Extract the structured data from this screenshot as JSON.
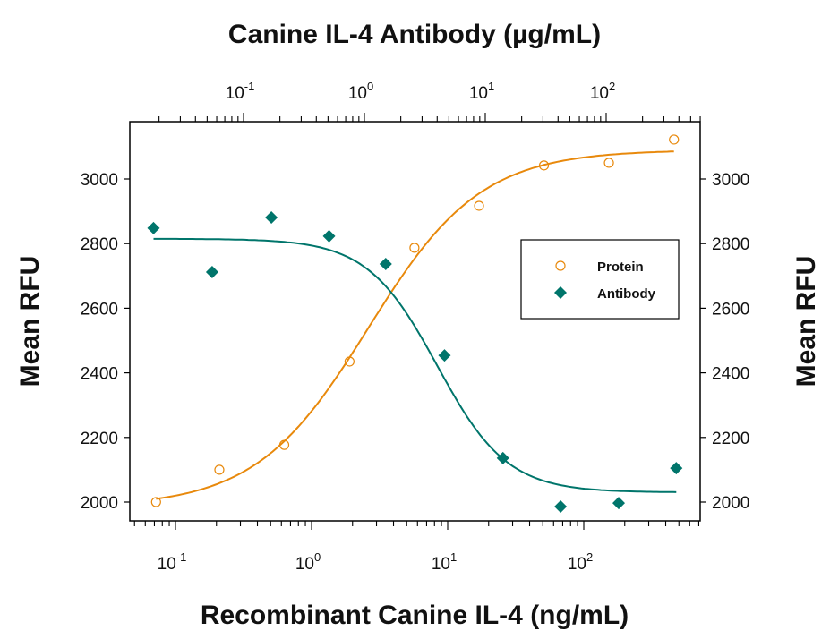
{
  "chart_data": {
    "type": "scatter",
    "title": "",
    "top_xlabel": "Canine IL-4 Antibody (µg/mL)",
    "xlabel": "Recombinant Canine IL-4 (ng/mL)",
    "ylabel": "Mean RFU",
    "ylabel_right": "Mean RFU",
    "xscale": "log",
    "bottom_x_ticks": [
      "10^-1",
      "10^0",
      "10^1",
      "10^2"
    ],
    "top_x_ticks": [
      "10^-1",
      "10^0",
      "10^1",
      "10^2"
    ],
    "y_ticks": [
      2000,
      2200,
      2400,
      2600,
      2800,
      3000
    ],
    "ylim": [
      1940,
      3175
    ],
    "grid": false,
    "legend_position": "upper right (inside)",
    "series": [
      {
        "name": "Protein",
        "axis": "bottom",
        "marker": "open-circle",
        "color": "#E8890C",
        "x": [
          0.072,
          0.21,
          0.63,
          1.9,
          5.7,
          17,
          51,
          153,
          460
        ],
        "y": [
          2000,
          2100,
          2177,
          2435,
          2787,
          2917,
          3042,
          3050,
          3122
        ],
        "fit": "4PL sigmoid, rising from ~2015 to ~3085"
      },
      {
        "name": "Antibody",
        "axis": "top",
        "marker": "filled-diamond",
        "color": "#00756B",
        "x": [
          0.018,
          0.055,
          0.17,
          0.51,
          1.5,
          4.6,
          14,
          42,
          127,
          380
        ],
        "y": [
          2848,
          2712,
          2881,
          2823,
          2737,
          2454,
          2136,
          1986,
          1997,
          2105
        ],
        "fit": "4PL sigmoid, falling from ~2815 to ~2030"
      }
    ]
  },
  "titles": {
    "top": "Canine IL-4 Antibody (µg/mL)",
    "bottom": "Recombinant Canine IL-4 (ng/mL)",
    "left": "Mean RFU",
    "right": "Mean RFU"
  },
  "legend": {
    "items": [
      {
        "label": "Protein",
        "color": "#E8890C",
        "marker": "open-circle"
      },
      {
        "label": "Antibody",
        "color": "#00756B",
        "marker": "filled-diamond"
      }
    ]
  },
  "colors": {
    "protein": "#E8890C",
    "antibody": "#00756B",
    "axis": "#000000"
  }
}
